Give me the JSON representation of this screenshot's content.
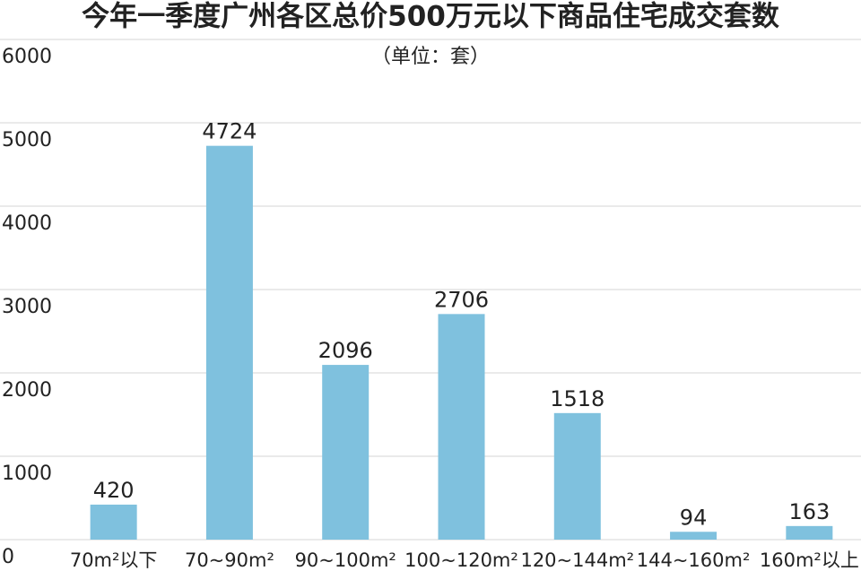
{
  "chart_data": {
    "type": "bar",
    "title": "今年一季度广州各区总价500万元以下商品住宅成交套数",
    "subtitle": "（单位：套）",
    "categories": [
      "70m²以下",
      "70~90m²",
      "90~100m²",
      "100~120m²",
      "120~144m²",
      "144~160m²",
      "160m²以上"
    ],
    "values": [
      420,
      4724,
      2096,
      2706,
      1518,
      94,
      163
    ],
    "color": "#7fc1de",
    "ylim": [
      0,
      6000
    ],
    "yticks": [
      0,
      1000,
      2000,
      3000,
      4000,
      5000,
      6000
    ],
    "grid": true
  }
}
